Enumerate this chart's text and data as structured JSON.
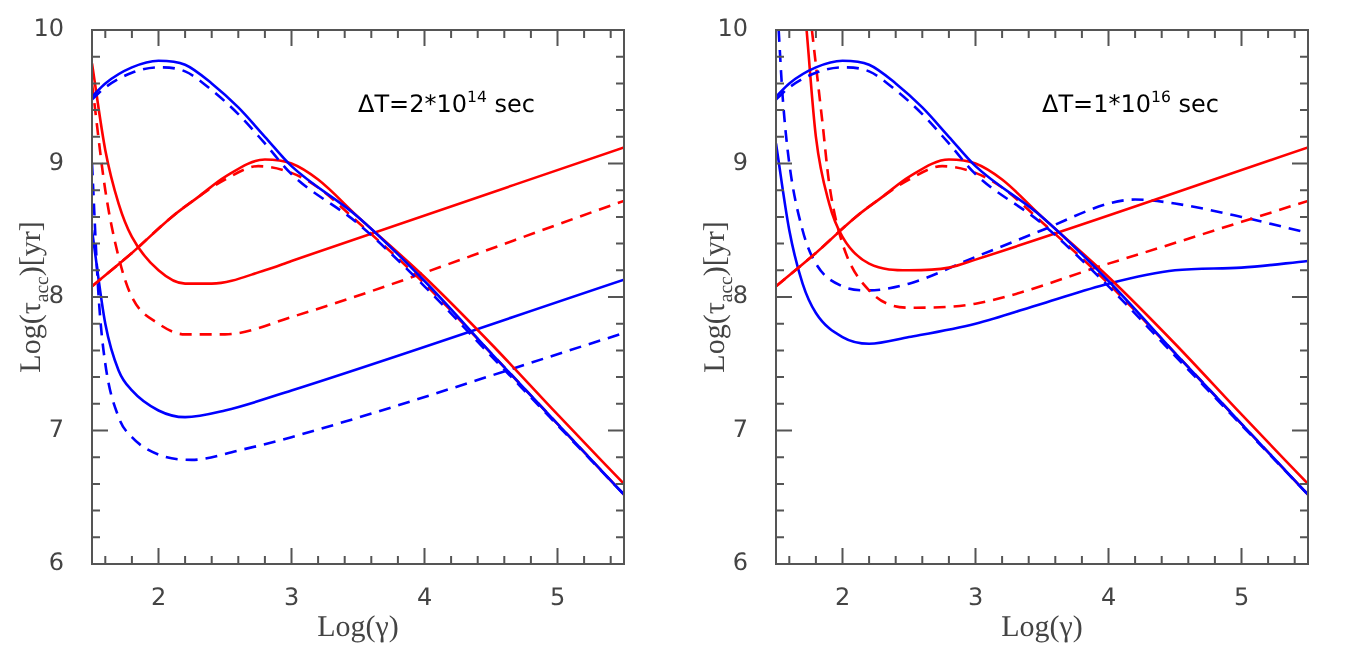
{
  "chart_data": [
    {
      "type": "line",
      "xlabel": "Log(γ)",
      "ylabel": "Log(τ$_{acc}$)[yr]",
      "annotations": [
        "ΔT=2*10$^{14}$ sec"
      ],
      "xlim": [
        1.5,
        5.5
      ],
      "ylim": [
        6,
        10
      ],
      "grid": false,
      "xticks": [
        {
          "value": 1.6,
          "label": null
        },
        {
          "value": 1.8,
          "label": null
        },
        2,
        {
          "value": 2.2,
          "label": null
        },
        {
          "value": 2.4,
          "label": null
        },
        {
          "value": 2.6,
          "label": null
        },
        {
          "value": 2.8,
          "label": null
        },
        3,
        {
          "value": 3.2,
          "label": null
        },
        {
          "value": 3.4,
          "label": null
        },
        {
          "value": 3.6,
          "label": null
        },
        {
          "value": 3.8,
          "label": null
        },
        4,
        {
          "value": 4.2,
          "label": null
        },
        {
          "value": 4.4,
          "label": null
        },
        {
          "value": 4.6,
          "label": null
        },
        {
          "value": 4.8,
          "label": null
        },
        5,
        {
          "value": 5.2,
          "label": null
        },
        {
          "value": 5.4,
          "label": null
        }
      ],
      "yticks": [
        6,
        {
          "value": 6.2,
          "label": null
        },
        {
          "value": 6.4,
          "label": null
        },
        {
          "value": 6.6,
          "label": null
        },
        {
          "value": 6.8,
          "label": null
        },
        7,
        {
          "value": 7.2,
          "label": null
        },
        {
          "value": 7.4,
          "label": null
        },
        {
          "value": 7.6,
          "label": null
        },
        {
          "value": 7.8,
          "label": null
        },
        8,
        {
          "value": 8.2,
          "label": null
        },
        {
          "value": 8.4,
          "label": null
        },
        {
          "value": 8.6,
          "label": null
        },
        {
          "value": 8.8,
          "label": null
        },
        9,
        {
          "value": 9.2,
          "label": null
        },
        {
          "value": 9.4,
          "label": null
        },
        {
          "value": 9.6,
          "label": null
        },
        {
          "value": 9.8,
          "label": null
        },
        10
      ],
      "series": [
        {
          "color": "#0000ff",
          "line_style": "solid",
          "x": [
            1.5,
            1.6,
            1.8,
            2.0,
            2.2,
            2.4,
            2.6,
            2.8,
            3.0,
            3.5,
            4.0,
            4.5,
            5.0,
            5.5
          ],
          "values": [
            9.5,
            9.6,
            9.72,
            9.77,
            9.74,
            9.6,
            9.42,
            9.2,
            8.98,
            8.6,
            8.12,
            7.58,
            7.05,
            6.52
          ]
        },
        {
          "color": "#0000ff",
          "line_style": "dashed",
          "x": [
            1.5,
            1.6,
            1.8,
            2.0,
            2.2,
            2.4,
            2.6,
            2.8,
            3.0,
            3.5,
            4.0,
            4.5,
            5.0,
            5.5
          ],
          "values": [
            9.48,
            9.57,
            9.68,
            9.72,
            9.69,
            9.55,
            9.37,
            9.15,
            8.92,
            8.55,
            8.08,
            7.56,
            7.04,
            6.52
          ]
        },
        {
          "color": "#ff0000",
          "line_style": "solid",
          "x": [
            1.5,
            1.8,
            2.1,
            2.3,
            2.5,
            2.8,
            3.0,
            3.2,
            3.5,
            4.0,
            4.5,
            5.0,
            5.5
          ],
          "values": [
            8.08,
            8.33,
            8.6,
            8.75,
            8.9,
            9.03,
            9.0,
            8.88,
            8.6,
            8.15,
            7.65,
            7.12,
            6.6
          ]
        },
        {
          "color": "#ff0000",
          "line_style": "dashed",
          "x": [
            1.5,
            1.8,
            2.1,
            2.3,
            2.5,
            2.75,
            3.0,
            3.2,
            3.5,
            4.0,
            4.5,
            5.0,
            5.5
          ],
          "values": [
            8.08,
            8.33,
            8.6,
            8.75,
            8.88,
            8.98,
            8.93,
            8.82,
            8.56,
            8.1,
            7.58,
            7.05,
            6.52
          ]
        },
        {
          "color": "#ff0000",
          "line_style": "solid",
          "x": [
            1.5,
            1.6,
            1.7,
            1.8,
            2.0,
            2.2,
            2.4,
            2.8,
            3.0,
            5.5
          ],
          "values": [
            9.75,
            9.1,
            8.7,
            8.45,
            8.2,
            8.1,
            8.1,
            8.2,
            8.27,
            9.12
          ]
        },
        {
          "color": "#ff0000",
          "line_style": "dashed",
          "x": [
            1.5,
            1.6,
            1.7,
            1.8,
            2.0,
            2.2,
            2.5,
            3.0,
            5.5
          ],
          "values": [
            9.6,
            8.8,
            8.3,
            8.0,
            7.8,
            7.72,
            7.72,
            7.85,
            8.72
          ]
        },
        {
          "color": "#0000ff",
          "line_style": "solid",
          "x": [
            1.5,
            1.6,
            1.7,
            1.8,
            2.0,
            2.2,
            2.5,
            3.0,
            5.5
          ],
          "values": [
            8.5,
            7.8,
            7.45,
            7.3,
            7.15,
            7.1,
            7.15,
            7.3,
            8.13
          ]
        },
        {
          "color": "#0000ff",
          "line_style": "dashed",
          "x": [
            1.5,
            1.55,
            1.6,
            1.7,
            1.8,
            2.0,
            2.25,
            2.6,
            3.0,
            5.5
          ],
          "values": [
            9.0,
            8.0,
            7.5,
            7.1,
            6.95,
            6.82,
            6.78,
            6.85,
            6.95,
            7.73
          ]
        }
      ]
    },
    {
      "type": "line",
      "xlabel": "Log(γ)",
      "ylabel": "Log(τ$_{acc}$)[yr]",
      "annotations": [
        "ΔT=1*10$^{16}$ sec"
      ],
      "xlim": [
        1.5,
        5.5
      ],
      "ylim": [
        6,
        10
      ],
      "grid": false,
      "xticks": [
        {
          "value": 1.6,
          "label": null
        },
        {
          "value": 1.8,
          "label": null
        },
        2,
        {
          "value": 2.2,
          "label": null
        },
        {
          "value": 2.4,
          "label": null
        },
        {
          "value": 2.6,
          "label": null
        },
        {
          "value": 2.8,
          "label": null
        },
        3,
        {
          "value": 3.2,
          "label": null
        },
        {
          "value": 3.4,
          "label": null
        },
        {
          "value": 3.6,
          "label": null
        },
        {
          "value": 3.8,
          "label": null
        },
        4,
        {
          "value": 4.2,
          "label": null
        },
        {
          "value": 4.4,
          "label": null
        },
        {
          "value": 4.6,
          "label": null
        },
        {
          "value": 4.8,
          "label": null
        },
        5,
        {
          "value": 5.2,
          "label": null
        },
        {
          "value": 5.4,
          "label": null
        }
      ],
      "yticks": [
        6,
        {
          "value": 6.2,
          "label": null
        },
        {
          "value": 6.4,
          "label": null
        },
        {
          "value": 6.6,
          "label": null
        },
        {
          "value": 6.8,
          "label": null
        },
        7,
        {
          "value": 7.2,
          "label": null
        },
        {
          "value": 7.4,
          "label": null
        },
        {
          "value": 7.6,
          "label": null
        },
        {
          "value": 7.8,
          "label": null
        },
        8,
        {
          "value": 8.2,
          "label": null
        },
        {
          "value": 8.4,
          "label": null
        },
        {
          "value": 8.6,
          "label": null
        },
        {
          "value": 8.8,
          "label": null
        },
        9,
        {
          "value": 9.2,
          "label": null
        },
        {
          "value": 9.4,
          "label": null
        },
        {
          "value": 9.6,
          "label": null
        },
        {
          "value": 9.8,
          "label": null
        },
        10
      ],
      "series": [
        {
          "color": "#0000ff",
          "line_style": "solid",
          "x": [
            1.5,
            1.6,
            1.8,
            2.0,
            2.2,
            2.4,
            2.6,
            2.8,
            3.0,
            3.5,
            4.0,
            4.5,
            5.0,
            5.5
          ],
          "values": [
            9.5,
            9.6,
            9.72,
            9.77,
            9.74,
            9.6,
            9.42,
            9.2,
            8.98,
            8.6,
            8.12,
            7.58,
            7.05,
            6.52
          ]
        },
        {
          "color": "#0000ff",
          "line_style": "dashed",
          "x": [
            1.5,
            1.6,
            1.8,
            2.0,
            2.2,
            2.4,
            2.6,
            2.8,
            3.0,
            3.5,
            4.0,
            4.5,
            5.0,
            5.5
          ],
          "values": [
            9.48,
            9.57,
            9.68,
            9.72,
            9.69,
            9.55,
            9.37,
            9.15,
            8.92,
            8.55,
            8.08,
            7.56,
            7.04,
            6.52
          ]
        },
        {
          "color": "#ff0000",
          "line_style": "solid",
          "x": [
            1.5,
            1.8,
            2.1,
            2.3,
            2.5,
            2.8,
            3.0,
            3.2,
            3.5,
            4.0,
            4.5,
            5.0,
            5.5
          ],
          "values": [
            8.08,
            8.33,
            8.6,
            8.75,
            8.9,
            9.03,
            9.0,
            8.88,
            8.6,
            8.15,
            7.65,
            7.12,
            6.6
          ]
        },
        {
          "color": "#ff0000",
          "line_style": "dashed",
          "x": [
            1.5,
            1.8,
            2.1,
            2.3,
            2.5,
            2.75,
            3.0,
            3.2,
            3.5,
            4.0,
            4.5,
            5.0,
            5.5
          ],
          "values": [
            8.08,
            8.33,
            8.6,
            8.75,
            8.88,
            8.98,
            8.93,
            8.82,
            8.56,
            8.1,
            7.58,
            7.05,
            6.52
          ]
        },
        {
          "color": "#ff0000",
          "line_style": "solid",
          "x": [
            1.73,
            1.8,
            1.9,
            2.0,
            2.2,
            2.5,
            2.8,
            3.0,
            5.5
          ],
          "values": [
            10,
            9.2,
            8.7,
            8.45,
            8.25,
            8.2,
            8.22,
            8.28,
            9.12
          ]
        },
        {
          "color": "#ff0000",
          "line_style": "dashed",
          "x": [
            1.77,
            1.85,
            1.9,
            2.0,
            2.2,
            2.5,
            3.0,
            4.0,
            5.5
          ],
          "values": [
            10,
            9.3,
            8.85,
            8.4,
            8.05,
            7.92,
            7.95,
            8.25,
            8.72
          ]
        },
        {
          "color": "#0000ff",
          "line_style": "solid",
          "x": [
            1.5,
            1.6,
            1.7,
            1.8,
            2.0,
            2.2,
            2.5,
            3.0,
            3.5,
            4.0,
            4.5,
            5.0,
            5.5
          ],
          "values": [
            9.15,
            8.5,
            8.1,
            7.88,
            7.7,
            7.65,
            7.7,
            7.8,
            7.95,
            8.1,
            8.2,
            8.22,
            8.27
          ]
        },
        {
          "color": "#0000ff",
          "line_style": "dashed",
          "x": [
            1.52,
            1.55,
            1.6,
            1.7,
            1.8,
            2.0,
            2.2,
            2.5,
            3.0,
            3.5,
            4.0,
            4.2,
            4.5,
            5.0,
            5.5
          ],
          "values": [
            10,
            9.5,
            9.0,
            8.5,
            8.25,
            8.08,
            8.05,
            8.1,
            8.3,
            8.5,
            8.7,
            8.73,
            8.7,
            8.6,
            8.48
          ]
        }
      ]
    }
  ]
}
